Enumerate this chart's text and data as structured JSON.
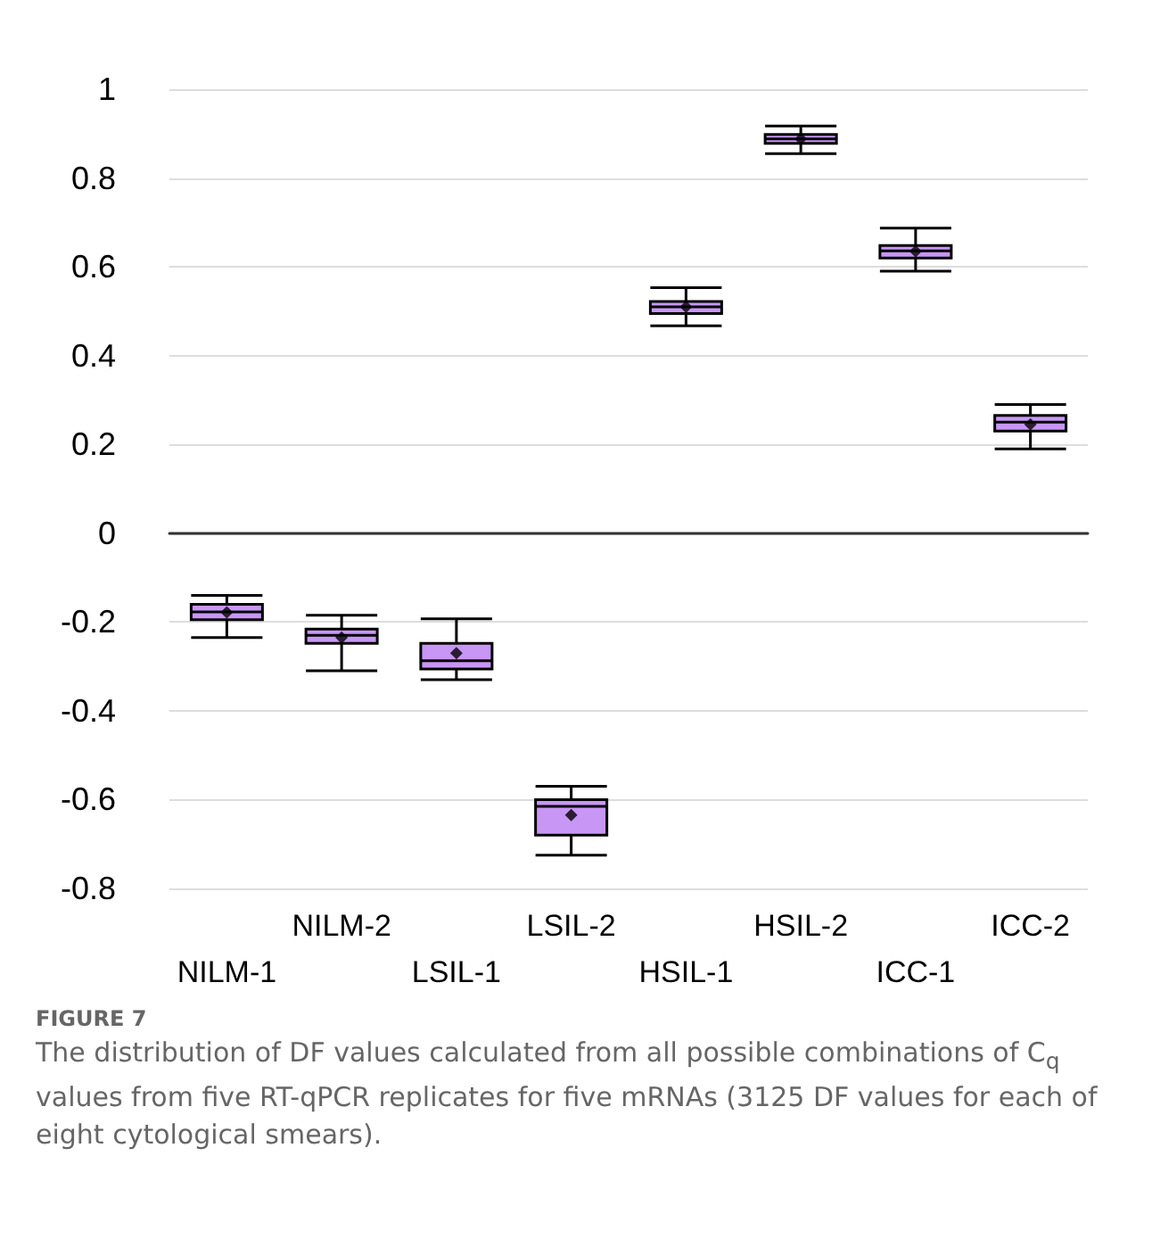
{
  "chart_data": {
    "type": "box",
    "categories": [
      "NILM-1",
      "NILM-2",
      "LSIL-1",
      "LSIL-2",
      "HSIL-1",
      "HSIL-2",
      "ICC-1",
      "ICC-2"
    ],
    "boxes": [
      {
        "low": -0.235,
        "q1": -0.195,
        "median": -0.177,
        "q3": -0.16,
        "high": -0.14,
        "mean": -0.178
      },
      {
        "low": -0.31,
        "q1": -0.248,
        "median": -0.23,
        "q3": -0.216,
        "high": -0.185,
        "mean": -0.235
      },
      {
        "low": -0.33,
        "q1": -0.306,
        "median": -0.287,
        "q3": -0.248,
        "high": -0.193,
        "mean": -0.27
      },
      {
        "low": -0.725,
        "q1": -0.68,
        "median": -0.615,
        "q3": -0.6,
        "high": -0.57,
        "mean": -0.635
      },
      {
        "low": 0.467,
        "q1": 0.495,
        "median": 0.51,
        "q3": 0.522,
        "high": 0.553,
        "mean": 0.51
      },
      {
        "low": 0.855,
        "q1": 0.878,
        "median": 0.888,
        "q3": 0.898,
        "high": 0.917,
        "mean": 0.888
      },
      {
        "low": 0.59,
        "q1": 0.62,
        "median": 0.636,
        "q3": 0.648,
        "high": 0.687,
        "mean": 0.635
      },
      {
        "low": 0.19,
        "q1": 0.23,
        "median": 0.25,
        "q3": 0.265,
        "high": 0.29,
        "mean": 0.245
      }
    ],
    "color": "#c896f5",
    "ylim": [
      -0.8,
      1
    ],
    "yticks": [
      -0.8,
      -0.6,
      -0.4,
      -0.2,
      0,
      0.2,
      0.4,
      0.6,
      0.8,
      1
    ],
    "grid": "y",
    "annotations": [
      "FIGURE 7",
      "The distribution of DF values calculated from all possible combinations of C$_{q}$ values from five RT-qPCR replicates for five mRNAs (3125 DF values for each of eight cytological smears)."
    ]
  }
}
